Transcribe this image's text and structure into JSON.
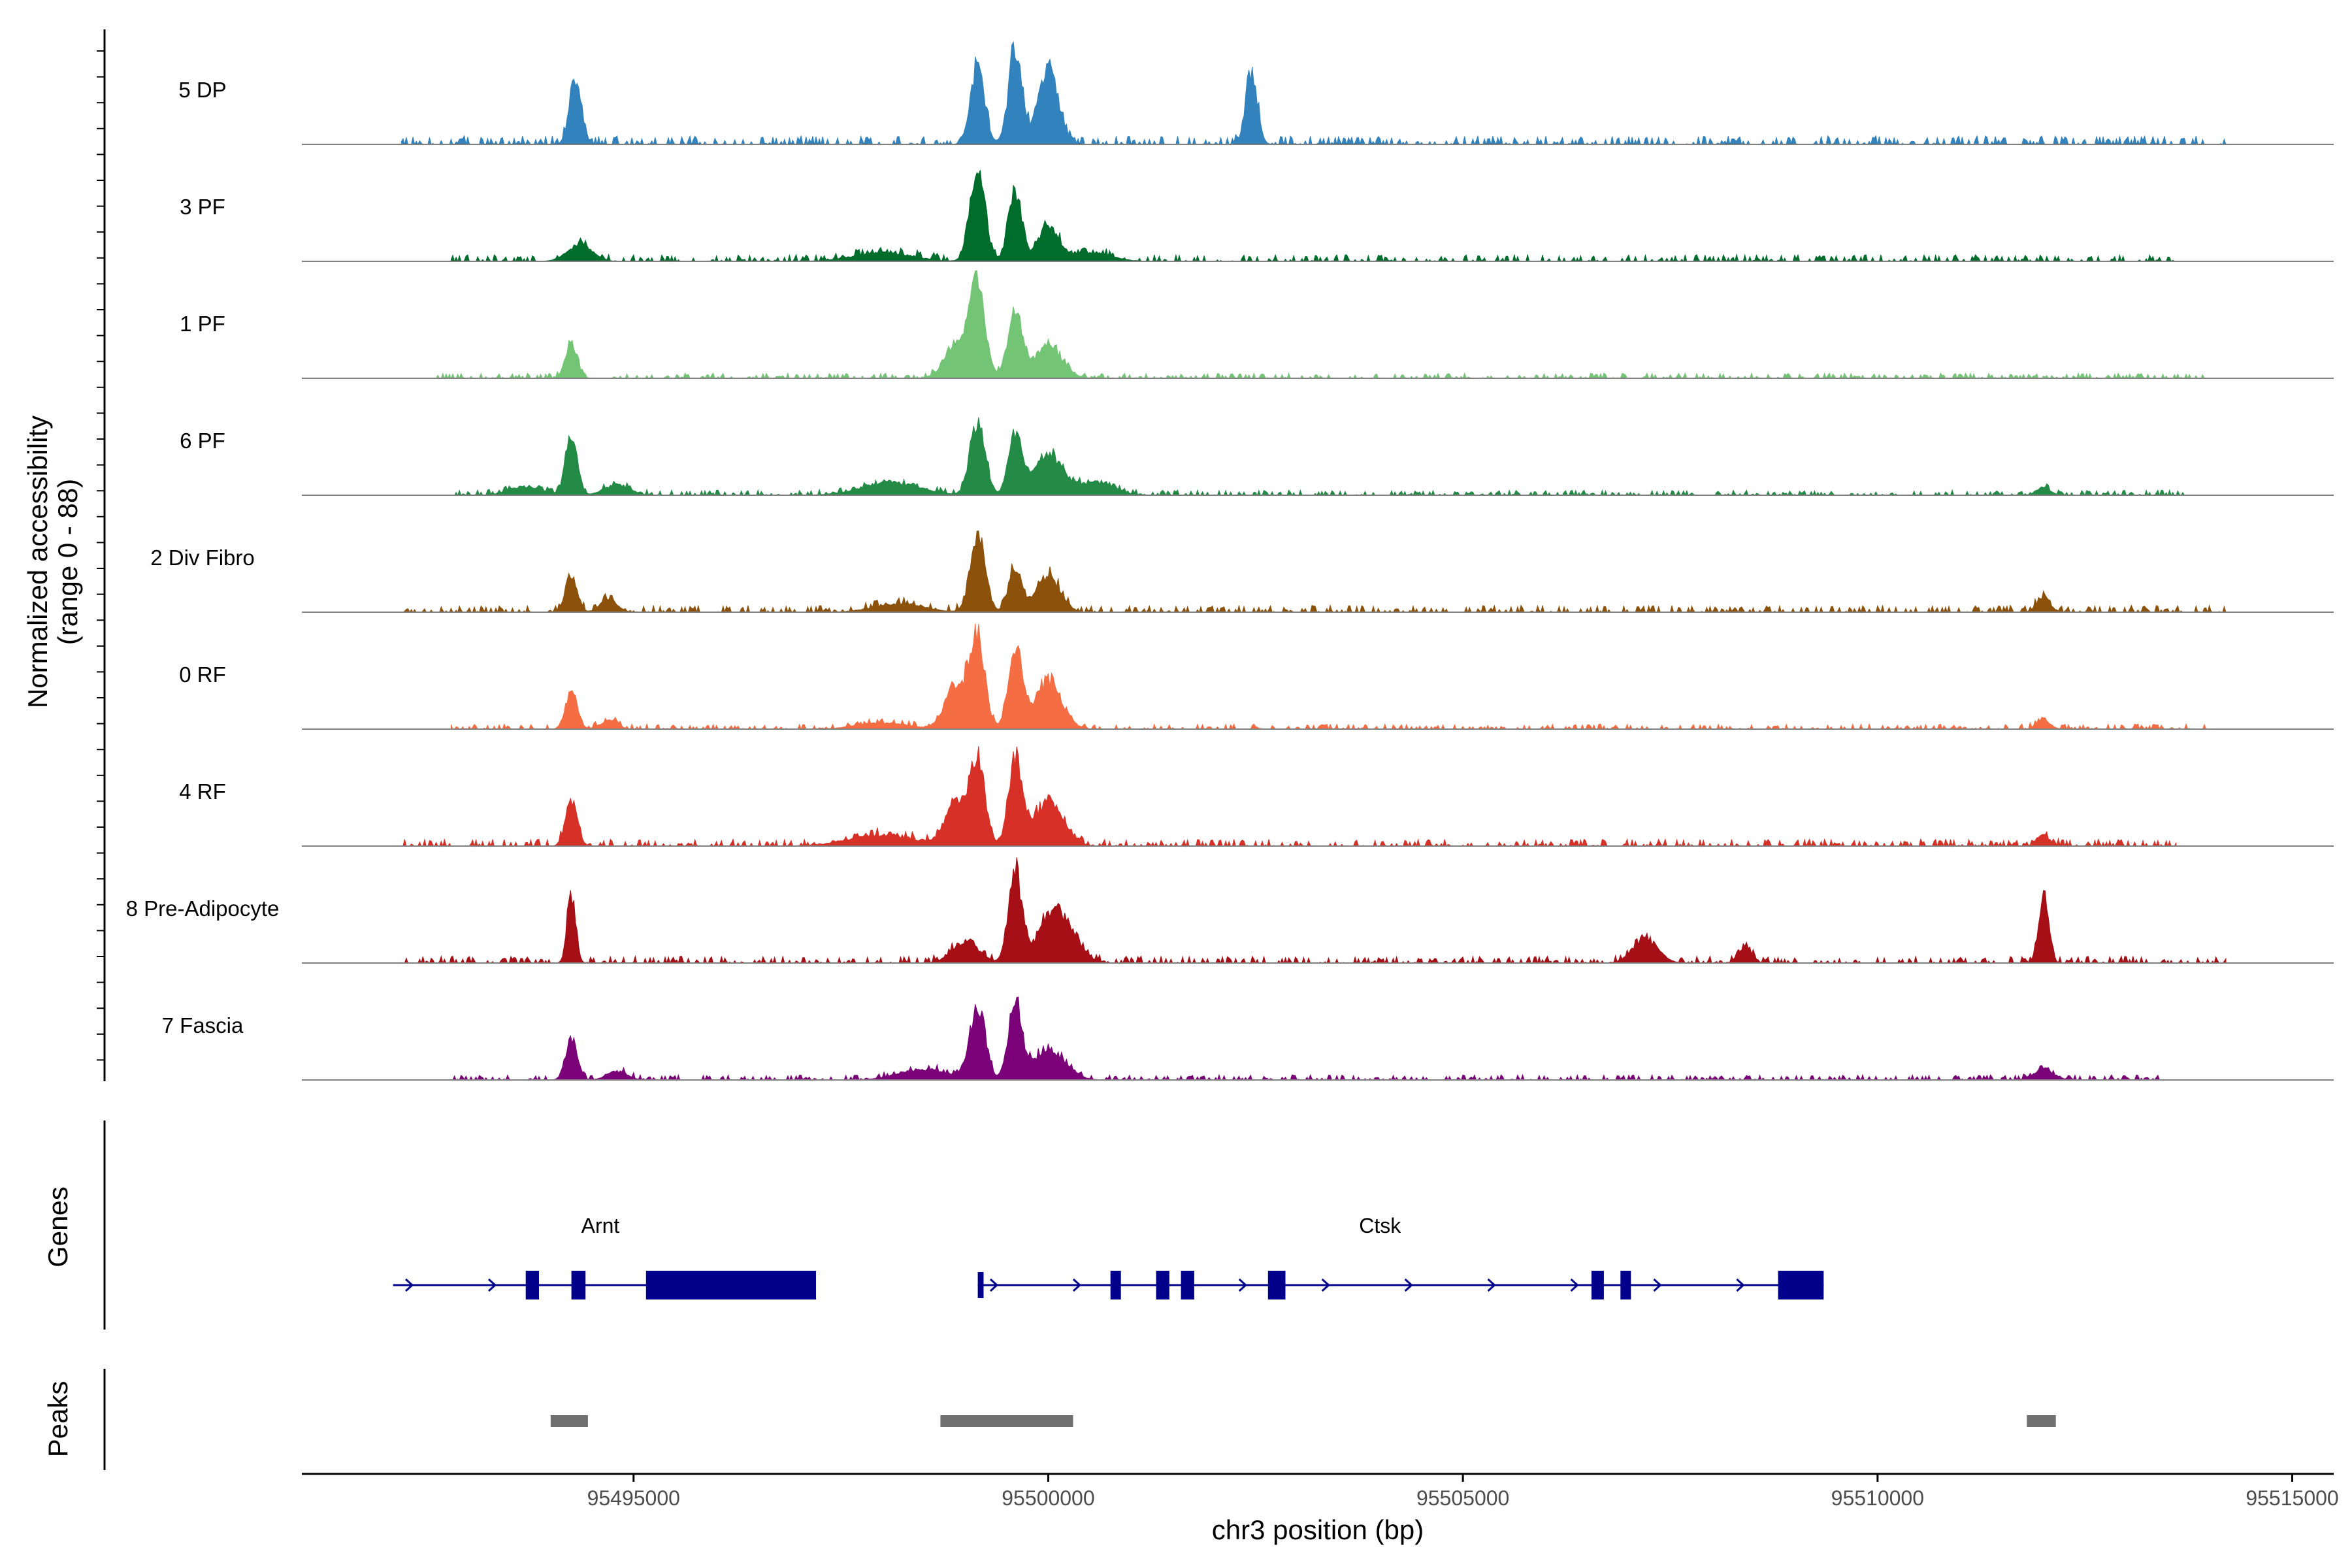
{
  "chart_data": {
    "type": "area",
    "title": "",
    "ylabel_line1": "Normalized accessibility",
    "ylabel_line2": "(range 0 - 88)",
    "ylim": [
      0,
      88
    ],
    "xlabel": "chr3 position (bp)",
    "xlim": [
      95491000,
      95515500
    ],
    "x_ticks": [
      {
        "value": 95495000,
        "label": "95495000"
      },
      {
        "value": 95500000,
        "label": "95500000"
      },
      {
        "value": 95505000,
        "label": "95505000"
      },
      {
        "value": 95510000,
        "label": "95510000"
      },
      {
        "value": 95515000,
        "label": "95515000"
      }
    ],
    "series": [
      {
        "name": "5 DP",
        "color": "#3182bd",
        "peaks": [
          [
            95494300,
            62,
            70
          ],
          [
            95499150,
            72,
            85
          ],
          [
            95499600,
            85,
            80
          ],
          [
            95500000,
            72,
            120
          ],
          [
            95502450,
            70,
            70
          ]
        ],
        "noise": [
          [
            95492200,
            95514200,
            5
          ]
        ]
      },
      {
        "name": "3 PF",
        "color": "#006d2c",
        "peaks": [
          [
            95494350,
            15,
            150
          ],
          [
            95498000,
            8,
            350
          ],
          [
            95499150,
            82,
            90
          ],
          [
            95499600,
            65,
            80
          ],
          [
            95500000,
            32,
            120
          ],
          [
            95500500,
            8,
            250
          ]
        ],
        "noise": [
          [
            95492800,
            95513600,
            4
          ]
        ]
      },
      {
        "name": "1 PF",
        "color": "#74c476",
        "peaks": [
          [
            95494250,
            32,
            70
          ],
          [
            95498900,
            35,
            140
          ],
          [
            95499150,
            82,
            90
          ],
          [
            95499600,
            60,
            90
          ],
          [
            95500000,
            30,
            160
          ]
        ],
        "noise": [
          [
            95492600,
            95514000,
            3
          ]
        ]
      },
      {
        "name": "6 PF",
        "color": "#238b45",
        "peaks": [
          [
            95494250,
            55,
            70
          ],
          [
            95493700,
            8,
            200
          ],
          [
            95494800,
            10,
            150
          ],
          [
            95498100,
            12,
            350
          ],
          [
            95499150,
            68,
            90
          ],
          [
            95499600,
            55,
            80
          ],
          [
            95500000,
            38,
            180
          ],
          [
            95500600,
            12,
            200
          ],
          [
            95512000,
            8,
            80
          ]
        ],
        "noise": [
          [
            95492800,
            95513800,
            3
          ]
        ]
      },
      {
        "name": "2 Div Fibro",
        "color": "#8c510a",
        "peaks": [
          [
            95494250,
            35,
            70
          ],
          [
            95494700,
            12,
            100
          ],
          [
            95498200,
            8,
            300
          ],
          [
            95499150,
            70,
            90
          ],
          [
            95499600,
            40,
            80
          ],
          [
            95500000,
            35,
            140
          ],
          [
            95512000,
            14,
            80
          ]
        ],
        "noise": [
          [
            95492200,
            95514200,
            4
          ]
        ]
      },
      {
        "name": "0 RF",
        "color": "#f46d43",
        "peaks": [
          [
            95494250,
            35,
            70
          ],
          [
            95494700,
            8,
            100
          ],
          [
            95498000,
            6,
            300
          ],
          [
            95498900,
            40,
            140
          ],
          [
            95499150,
            80,
            90
          ],
          [
            95499600,
            75,
            80
          ],
          [
            95500000,
            45,
            160
          ],
          [
            95512000,
            8,
            80
          ]
        ],
        "noise": [
          [
            95492800,
            95514000,
            3
          ]
        ]
      },
      {
        "name": "4 RF",
        "color": "#d73027",
        "peaks": [
          [
            95494250,
            42,
            70
          ],
          [
            95498000,
            10,
            400
          ],
          [
            95498900,
            38,
            140
          ],
          [
            95499150,
            76,
            90
          ],
          [
            95499600,
            80,
            80
          ],
          [
            95500000,
            40,
            180
          ],
          [
            95512000,
            10,
            80
          ]
        ],
        "noise": [
          [
            95492200,
            95513600,
            4
          ]
        ]
      },
      {
        "name": "8 Pre-Adipocyte",
        "color": "#a50f15",
        "peaks": [
          [
            95494250,
            65,
            50
          ],
          [
            95499000,
            20,
            160
          ],
          [
            95499600,
            85,
            80
          ],
          [
            95500100,
            50,
            200
          ],
          [
            95507200,
            22,
            150
          ],
          [
            95508400,
            15,
            80
          ],
          [
            95512000,
            62,
            60
          ]
        ],
        "noise": [
          [
            95492200,
            95514200,
            4
          ]
        ]
      },
      {
        "name": "7 Fascia",
        "color": "#7a0177",
        "peaks": [
          [
            95494250,
            38,
            70
          ],
          [
            95494800,
            8,
            120
          ],
          [
            95498500,
            10,
            300
          ],
          [
            95499150,
            70,
            90
          ],
          [
            95499600,
            70,
            80
          ],
          [
            95500000,
            28,
            200
          ],
          [
            95512000,
            10,
            120
          ]
        ],
        "noise": [
          [
            95492800,
            95513400,
            3
          ]
        ]
      }
    ],
    "genes_track_label": "Genes",
    "genes": [
      {
        "name": "Arnt",
        "start": 95492100,
        "end": 95497200,
        "label_pos": 95494600,
        "strand": "+",
        "exons": [
          [
            95493700,
            95493860,
            "small"
          ],
          [
            95494250,
            95494420,
            "small"
          ],
          [
            95495150,
            95497200,
            "large"
          ]
        ]
      },
      {
        "name": "Ctsk",
        "start": 95499150,
        "end": 95509350,
        "label_pos": 95504000,
        "strand": "+",
        "exons": [
          [
            95499150,
            95499220,
            "tick"
          ],
          [
            95500750,
            95500870,
            "small"
          ],
          [
            95501300,
            95501460,
            "small"
          ],
          [
            95501600,
            95501760,
            "small"
          ],
          [
            95502650,
            95502860,
            "small"
          ],
          [
            95506550,
            95506700,
            "small"
          ],
          [
            95506900,
            95507010,
            "small"
          ],
          [
            95508800,
            95509350,
            "large"
          ]
        ]
      }
    ],
    "peaks_track_label": "Peaks",
    "peak_regions": [
      [
        95494000,
        95494450
      ],
      [
        95498700,
        95500300
      ],
      [
        95511800,
        95512150
      ]
    ],
    "colors": {
      "axis": "#000000",
      "baseline": "#808080",
      "gene": "#00008b",
      "peak_bar": "#707070",
      "tick_text": "#4d4d4d"
    }
  }
}
